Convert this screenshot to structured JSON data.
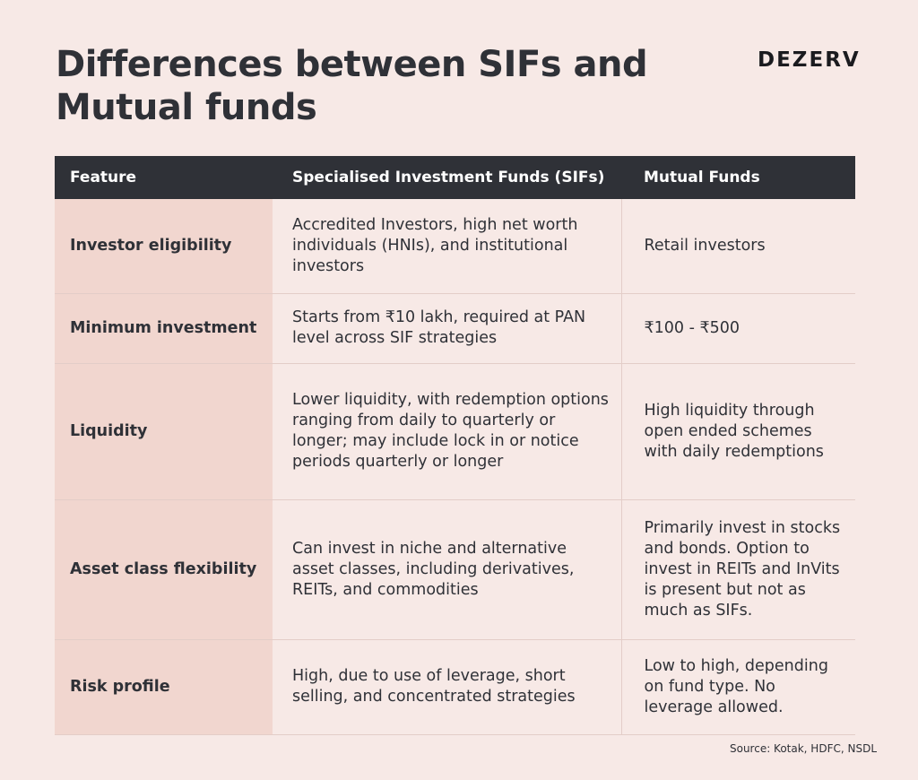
{
  "title": "Differences between SIFs and Mutual funds",
  "brand": "DEZERV",
  "table": {
    "headers": [
      "Feature",
      "Specialised Investment Funds (SIFs)",
      "Mutual Funds"
    ],
    "rows": [
      {
        "feature": "Investor eligibility",
        "sifs": "Accredited Investors, high net worth individuals (HNIs), and institutional investors",
        "mutual_funds": "Retail investors"
      },
      {
        "feature": "Minimum investment",
        "sifs": "Starts from ₹10 lakh, required at PAN level across SIF strategies",
        "mutual_funds": "₹100 - ₹500"
      },
      {
        "feature": "Liquidity",
        "sifs": "Lower liquidity, with redemption options ranging from daily to quarterly or longer; may include lock in or notice periods quarterly or longer",
        "mutual_funds": "High liquidity through open ended schemes with daily redemptions"
      },
      {
        "feature": "Asset class flexibility",
        "sifs": "Can invest in niche and alternative asset classes, including derivatives, REITs, and commodities",
        "mutual_funds": "Primarily invest in stocks and bonds. Option to invest in REITs and InVits is present but not as much as SIFs."
      },
      {
        "feature": "Risk profile",
        "sifs": "High, due to use of leverage, short selling, and concentrated strategies",
        "mutual_funds": "Low to high, depending on fund type. No leverage allowed."
      }
    ]
  },
  "source": "Source: Kotak, HDFC, NSDL",
  "colors": {
    "background": "#f7e9e6",
    "header_bg": "#2f3137",
    "feature_col_bg": "#f1d6cf",
    "text": "#2f3137"
  }
}
